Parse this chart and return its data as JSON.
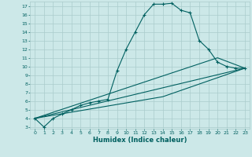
{
  "xlabel": "Humidex (Indice chaleur)",
  "bg_color": "#cce8e8",
  "grid_color": "#aacccc",
  "line_color": "#006060",
  "xlim": [
    -0.5,
    23.5
  ],
  "ylim": [
    2.8,
    17.5
  ],
  "x_ticks": [
    0,
    1,
    2,
    3,
    4,
    5,
    6,
    7,
    8,
    9,
    10,
    11,
    12,
    13,
    14,
    15,
    16,
    17,
    18,
    19,
    20,
    21,
    22,
    23
  ],
  "y_ticks": [
    3,
    4,
    5,
    6,
    7,
    8,
    9,
    10,
    11,
    12,
    13,
    14,
    15,
    16,
    17
  ],
  "line1_x": [
    0,
    1,
    2,
    3,
    4,
    5,
    6,
    7,
    8,
    9,
    10,
    11,
    12,
    13,
    14,
    15,
    16,
    17,
    18,
    19,
    20,
    21,
    22,
    23
  ],
  "line1_y": [
    4.0,
    3.0,
    4.0,
    4.5,
    5.0,
    5.5,
    5.8,
    6.0,
    6.2,
    9.5,
    12.0,
    14.0,
    16.0,
    17.2,
    17.2,
    17.3,
    16.5,
    16.2,
    13.0,
    12.0,
    10.5,
    10.0,
    9.8,
    9.8
  ],
  "line2_x": [
    0,
    23
  ],
  "line2_y": [
    4.0,
    9.8
  ],
  "line3_x": [
    0,
    14,
    23
  ],
  "line3_y": [
    4.0,
    6.5,
    9.8
  ],
  "line4_x": [
    0,
    20,
    23
  ],
  "line4_y": [
    4.0,
    11.0,
    9.8
  ],
  "tick_fontsize": 4.5,
  "xlabel_fontsize": 6.0,
  "marker_size": 3.5,
  "line_width": 0.8
}
